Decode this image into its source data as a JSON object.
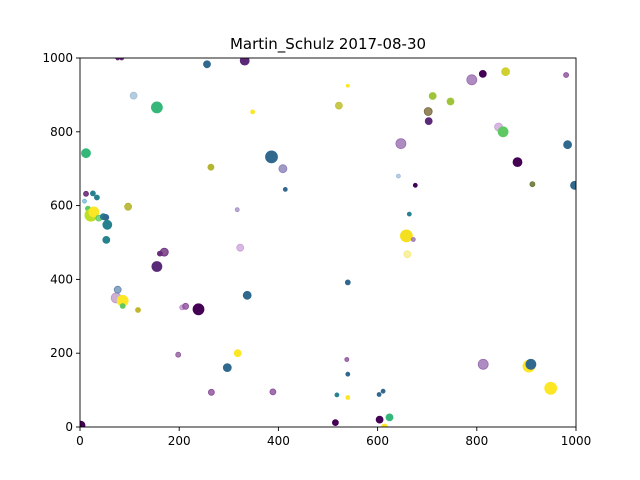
{
  "chart_data": {
    "type": "scatter",
    "title": "Martin_Schulz    2017-08-30",
    "xlabel": "",
    "ylabel": "",
    "xlim": [
      0,
      1000
    ],
    "ylim": [
      0,
      1000
    ],
    "xticks": [
      "0",
      "200",
      "400",
      "600",
      "800",
      "1000"
    ],
    "yticks": [
      "0",
      "200",
      "400",
      "600",
      "800",
      "1000"
    ],
    "grid": false,
    "colormap": "viridis",
    "points": [
      {
        "x": 2,
        "y": 5,
        "s": 4,
        "c": "#440154",
        "a": 1.0
      },
      {
        "x": 9,
        "y": 612,
        "s": 2,
        "c": "#6ab0ce",
        "a": 0.7
      },
      {
        "x": 12,
        "y": 632,
        "s": 2.5,
        "c": "#6a2c7a",
        "a": 0.9
      },
      {
        "x": 12,
        "y": 742,
        "s": 4.5,
        "c": "#35b779",
        "a": 1.0
      },
      {
        "x": 16,
        "y": 592,
        "s": 2.5,
        "c": "#5ec962",
        "a": 1.0
      },
      {
        "x": 22,
        "y": 574,
        "s": 6,
        "c": "#bddf26",
        "a": 1.0
      },
      {
        "x": 28,
        "y": 583,
        "s": 5,
        "c": "#fde725",
        "a": 1.0
      },
      {
        "x": 26,
        "y": 633,
        "s": 2.5,
        "c": "#26828e",
        "a": 1.0
      },
      {
        "x": 34,
        "y": 622,
        "s": 2.5,
        "c": "#26828e",
        "a": 1.0
      },
      {
        "x": 38,
        "y": 566,
        "s": 3,
        "c": "#5ec962",
        "a": 0.8
      },
      {
        "x": 47,
        "y": 570,
        "s": 3,
        "c": "#26828e",
        "a": 1.0
      },
      {
        "x": 52,
        "y": 568,
        "s": 3,
        "c": "#31688e",
        "a": 1.0
      },
      {
        "x": 55,
        "y": 548,
        "s": 4.5,
        "c": "#26828e",
        "a": 1.0
      },
      {
        "x": 53,
        "y": 507,
        "s": 3.5,
        "c": "#26828e",
        "a": 1.0
      },
      {
        "x": 76,
        "y": 1000,
        "s": 2,
        "c": "#6a2c7a",
        "a": 1.0
      },
      {
        "x": 84,
        "y": 1000,
        "s": 2,
        "c": "#6a2c7a",
        "a": 1.0
      },
      {
        "x": 97,
        "y": 597,
        "s": 3.5,
        "c": "#b5b531",
        "a": 0.9
      },
      {
        "x": 108,
        "y": 898,
        "s": 3.5,
        "c": "#a2bfd6",
        "a": 0.8
      },
      {
        "x": 155,
        "y": 866,
        "s": 5.5,
        "c": "#35b779",
        "a": 1.0
      },
      {
        "x": 73,
        "y": 350,
        "s": 5,
        "c": "#b98fc0",
        "a": 0.7
      },
      {
        "x": 76,
        "y": 372,
        "s": 3.5,
        "c": "#5b82a8",
        "a": 0.7
      },
      {
        "x": 86,
        "y": 342,
        "s": 5.5,
        "c": "#fde725",
        "a": 1.0
      },
      {
        "x": 86,
        "y": 328,
        "s": 2.5,
        "c": "#5ec962",
        "a": 1.0
      },
      {
        "x": 117,
        "y": 317,
        "s": 2.5,
        "c": "#c2b72a",
        "a": 1.0
      },
      {
        "x": 155,
        "y": 435,
        "s": 5,
        "c": "#5a2a78",
        "a": 1.0
      },
      {
        "x": 161,
        "y": 470,
        "s": 2.5,
        "c": "#6a2c7a",
        "a": 1.0
      },
      {
        "x": 170,
        "y": 474,
        "s": 4,
        "c": "#6a2c7a",
        "a": 0.8
      },
      {
        "x": 198,
        "y": 196,
        "s": 2.5,
        "c": "#8e5c9c",
        "a": 0.8
      },
      {
        "x": 206,
        "y": 324,
        "s": 2.5,
        "c": "#c48fd0",
        "a": 0.8
      },
      {
        "x": 213,
        "y": 327,
        "s": 3,
        "c": "#8a4d98",
        "a": 0.8
      },
      {
        "x": 239,
        "y": 319,
        "s": 5.5,
        "c": "#440154",
        "a": 1.0
      },
      {
        "x": 256,
        "y": 983,
        "s": 3.5,
        "c": "#31688e",
        "a": 1.0
      },
      {
        "x": 264,
        "y": 704,
        "s": 3,
        "c": "#b5b531",
        "a": 1.0
      },
      {
        "x": 265,
        "y": 94,
        "s": 3,
        "c": "#8a4d98",
        "a": 0.8
      },
      {
        "x": 297,
        "y": 161,
        "s": 4,
        "c": "#31688e",
        "a": 1.0
      },
      {
        "x": 317,
        "y": 589,
        "s": 2,
        "c": "#9a86c0",
        "a": 0.7
      },
      {
        "x": 318,
        "y": 200,
        "s": 3.5,
        "c": "#fde725",
        "a": 1.0
      },
      {
        "x": 323,
        "y": 486,
        "s": 3.5,
        "c": "#c79ad6",
        "a": 0.7
      },
      {
        "x": 332,
        "y": 993,
        "s": 4.5,
        "c": "#5a2a78",
        "a": 1.0
      },
      {
        "x": 337,
        "y": 357,
        "s": 4,
        "c": "#31688e",
        "a": 1.0
      },
      {
        "x": 348,
        "y": 854,
        "s": 2,
        "c": "#fde725",
        "a": 1.0
      },
      {
        "x": 386,
        "y": 732,
        "s": 6,
        "c": "#31688e",
        "a": 1.0
      },
      {
        "x": 389,
        "y": 95,
        "s": 3,
        "c": "#8a4d98",
        "a": 0.8
      },
      {
        "x": 409,
        "y": 700,
        "s": 4,
        "c": "#8a7fb8",
        "a": 0.8
      },
      {
        "x": 414,
        "y": 644,
        "s": 2,
        "c": "#31688e",
        "a": 1.0
      },
      {
        "x": 522,
        "y": 871,
        "s": 3.5,
        "c": "#c2c23a",
        "a": 0.9
      },
      {
        "x": 540,
        "y": 925,
        "s": 1.5,
        "c": "#fde725",
        "a": 1.0
      },
      {
        "x": 540,
        "y": 392,
        "s": 2.5,
        "c": "#31688e",
        "a": 1.0
      },
      {
        "x": 538,
        "y": 183,
        "s": 2,
        "c": "#8a4d98",
        "a": 0.8
      },
      {
        "x": 540,
        "y": 143,
        "s": 2,
        "c": "#31688e",
        "a": 1.0
      },
      {
        "x": 518,
        "y": 87,
        "s": 2,
        "c": "#26828e",
        "a": 1.0
      },
      {
        "x": 540,
        "y": 80,
        "s": 2,
        "c": "#fde725",
        "a": 1.0
      },
      {
        "x": 515,
        "y": 12,
        "s": 3,
        "c": "#440154",
        "a": 1.0
      },
      {
        "x": 604,
        "y": 20,
        "s": 3.5,
        "c": "#440154",
        "a": 1.0
      },
      {
        "x": 614,
        "y": 0,
        "s": 3,
        "c": "#fde725",
        "a": 1.0
      },
      {
        "x": 624,
        "y": 26,
        "s": 3.5,
        "c": "#35b779",
        "a": 1.0
      },
      {
        "x": 603,
        "y": 88,
        "s": 2,
        "c": "#31688e",
        "a": 1.0
      },
      {
        "x": 611,
        "y": 97,
        "s": 2,
        "c": "#31688e",
        "a": 1.0
      },
      {
        "x": 642,
        "y": 680,
        "s": 2,
        "c": "#9ab8d8",
        "a": 0.7
      },
      {
        "x": 647,
        "y": 768,
        "s": 5,
        "c": "#9a6eb0",
        "a": 0.8
      },
      {
        "x": 658,
        "y": 518,
        "s": 6,
        "c": "#f5e020",
        "a": 1.0
      },
      {
        "x": 660,
        "y": 468,
        "s": 3.5,
        "c": "#f5e97a",
        "a": 0.7
      },
      {
        "x": 664,
        "y": 577,
        "s": 2,
        "c": "#26828e",
        "a": 1.0
      },
      {
        "x": 672,
        "y": 508,
        "s": 2,
        "c": "#9a6eb0",
        "a": 0.8
      },
      {
        "x": 676,
        "y": 655,
        "s": 2,
        "c": "#440154",
        "a": 1.0
      },
      {
        "x": 702,
        "y": 855,
        "s": 4,
        "c": "#7a6a3a",
        "a": 0.8
      },
      {
        "x": 703,
        "y": 829,
        "s": 3.5,
        "c": "#5a2a78",
        "a": 1.0
      },
      {
        "x": 711,
        "y": 897,
        "s": 3.5,
        "c": "#9fc43a",
        "a": 1.0
      },
      {
        "x": 747,
        "y": 882,
        "s": 3.5,
        "c": "#9fc43a",
        "a": 1.0
      },
      {
        "x": 790,
        "y": 941,
        "s": 5,
        "c": "#9a6eb0",
        "a": 0.8
      },
      {
        "x": 812,
        "y": 957,
        "s": 3.5,
        "c": "#440154",
        "a": 1.0
      },
      {
        "x": 813,
        "y": 170,
        "s": 5,
        "c": "#9a6eb0",
        "a": 0.8
      },
      {
        "x": 844,
        "y": 813,
        "s": 4,
        "c": "#c79ad6",
        "a": 0.7
      },
      {
        "x": 853,
        "y": 800,
        "s": 5,
        "c": "#5ec962",
        "a": 1.0
      },
      {
        "x": 858,
        "y": 963,
        "s": 4,
        "c": "#d0d030",
        "a": 1.0
      },
      {
        "x": 882,
        "y": 718,
        "s": 4.5,
        "c": "#440154",
        "a": 1.0
      },
      {
        "x": 905,
        "y": 165,
        "s": 6,
        "c": "#fde725",
        "a": 1.0
      },
      {
        "x": 909,
        "y": 170,
        "s": 5,
        "c": "#31688e",
        "a": 1.0
      },
      {
        "x": 912,
        "y": 658,
        "s": 2.5,
        "c": "#6a7a3a",
        "a": 0.9
      },
      {
        "x": 949,
        "y": 105,
        "s": 6,
        "c": "#fde725",
        "a": 1.0
      },
      {
        "x": 980,
        "y": 954,
        "s": 2.5,
        "c": "#8a4d98",
        "a": 0.8
      },
      {
        "x": 983,
        "y": 765,
        "s": 4,
        "c": "#31688e",
        "a": 1.0
      },
      {
        "x": 997,
        "y": 655,
        "s": 4,
        "c": "#31688e",
        "a": 1.0
      }
    ]
  }
}
